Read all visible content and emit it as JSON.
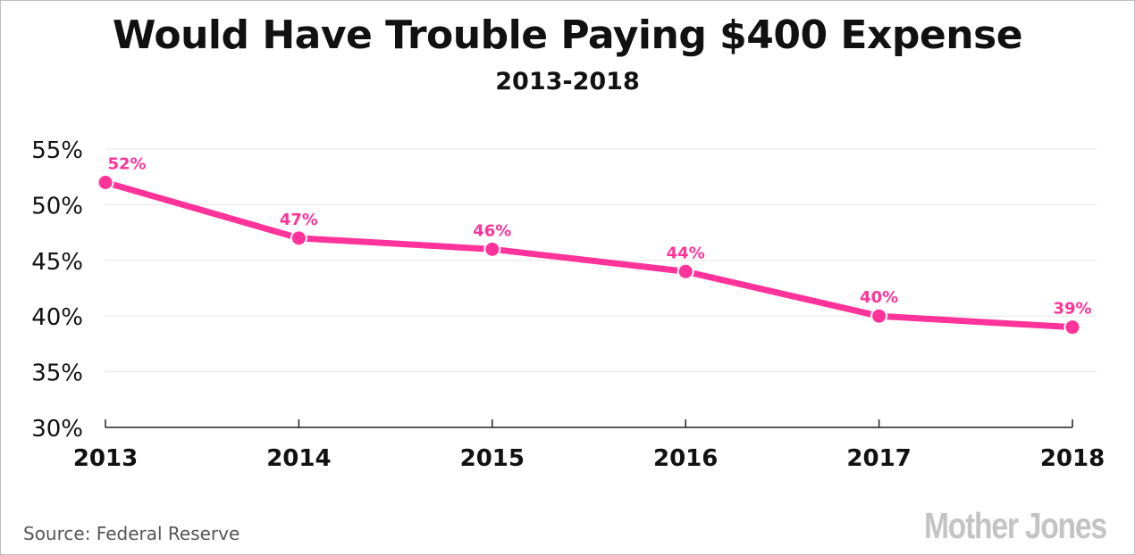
{
  "chart_data": {
    "type": "line",
    "title": "Would Have Trouble Paying $400 Expense",
    "subtitle": "2013-2018",
    "x": [
      "2013",
      "2014",
      "2015",
      "2016",
      "2017",
      "2018"
    ],
    "series": [
      {
        "values": [
          52,
          47,
          46,
          44,
          40,
          39
        ],
        "data_labels": [
          "52%",
          "47%",
          "46%",
          "44%",
          "40%",
          "39%"
        ]
      }
    ],
    "y_ticks": [
      30,
      35,
      40,
      45,
      50,
      55
    ],
    "y_tick_labels": [
      "30%",
      "35%",
      "40%",
      "45%",
      "50%",
      "55%"
    ],
    "ylim": [
      30,
      55
    ],
    "grid": true,
    "line_color": "#ff3399",
    "label_color": "#ff3399"
  },
  "source": "Source: Federal Reserve",
  "logo": "Mother Jones"
}
